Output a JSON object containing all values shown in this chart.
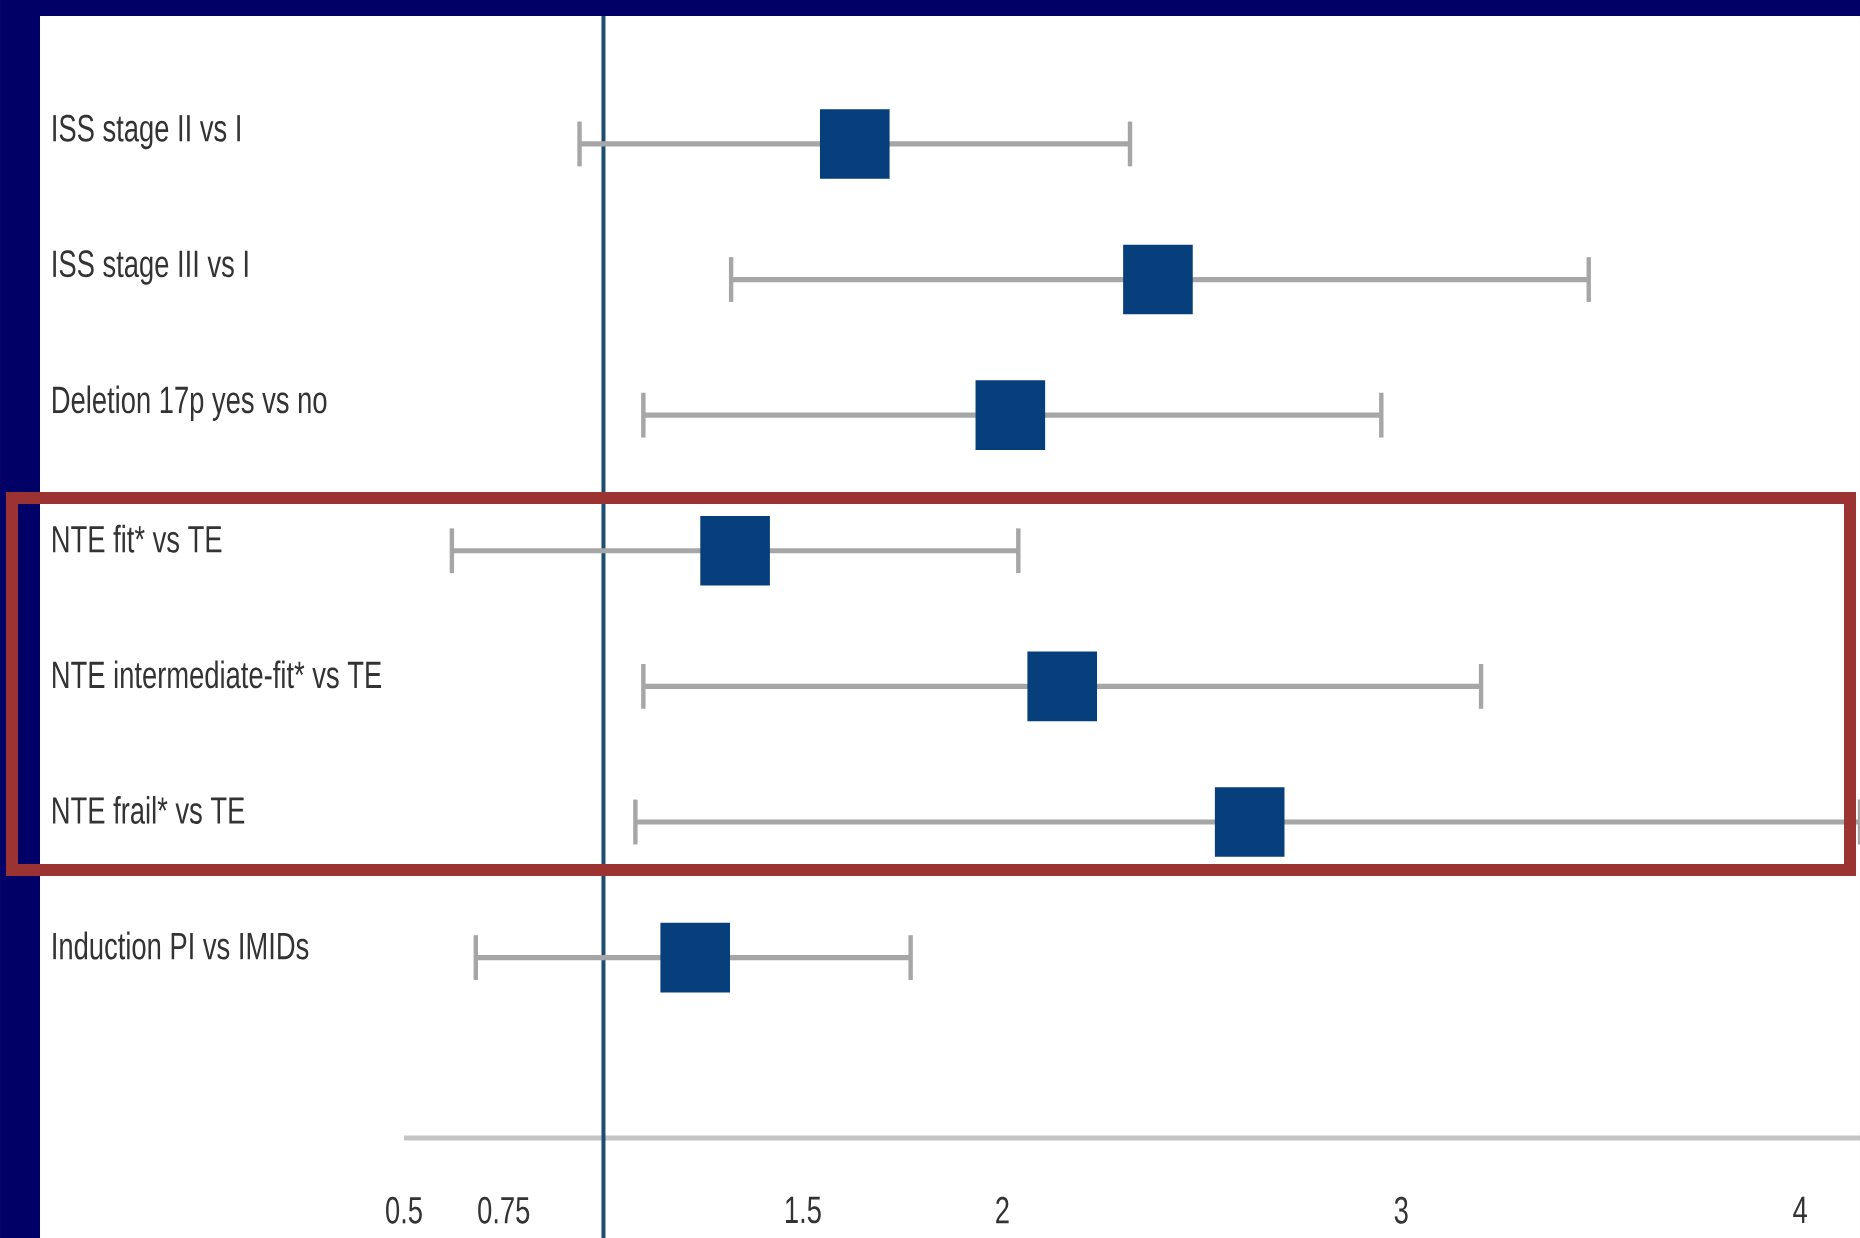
{
  "chart_data": {
    "type": "scatter",
    "orientation": "horizontal",
    "categories": [
      "ISS stage II vs I",
      "ISS stage III vs I",
      "Deletion 17p yes vs no",
      "NTE fit* vs TE",
      "NTE intermediate-fit* vs TE",
      "NTE frail* vs TE",
      "Induction PI vs IMIDs"
    ],
    "values": [
      1.63,
      2.39,
      2.02,
      1.33,
      2.15,
      2.62,
      1.23
    ],
    "errors": [
      [
        0.94,
        2.32
      ],
      [
        1.32,
        3.47
      ],
      [
        1.1,
        2.95
      ],
      [
        0.62,
        2.04
      ],
      [
        1.1,
        3.2
      ],
      [
        1.08,
        4.15
      ],
      [
        0.68,
        1.77
      ]
    ],
    "color": "#063f7c",
    "marker": "square",
    "xlim": [
      0.5,
      4.15
    ],
    "xticks": [
      0.5,
      0.75,
      1.5,
      2,
      3,
      4
    ],
    "ref_lines": [
      {
        "axis": "x",
        "value": 1,
        "color": "#1c4e73"
      }
    ]
  }
}
